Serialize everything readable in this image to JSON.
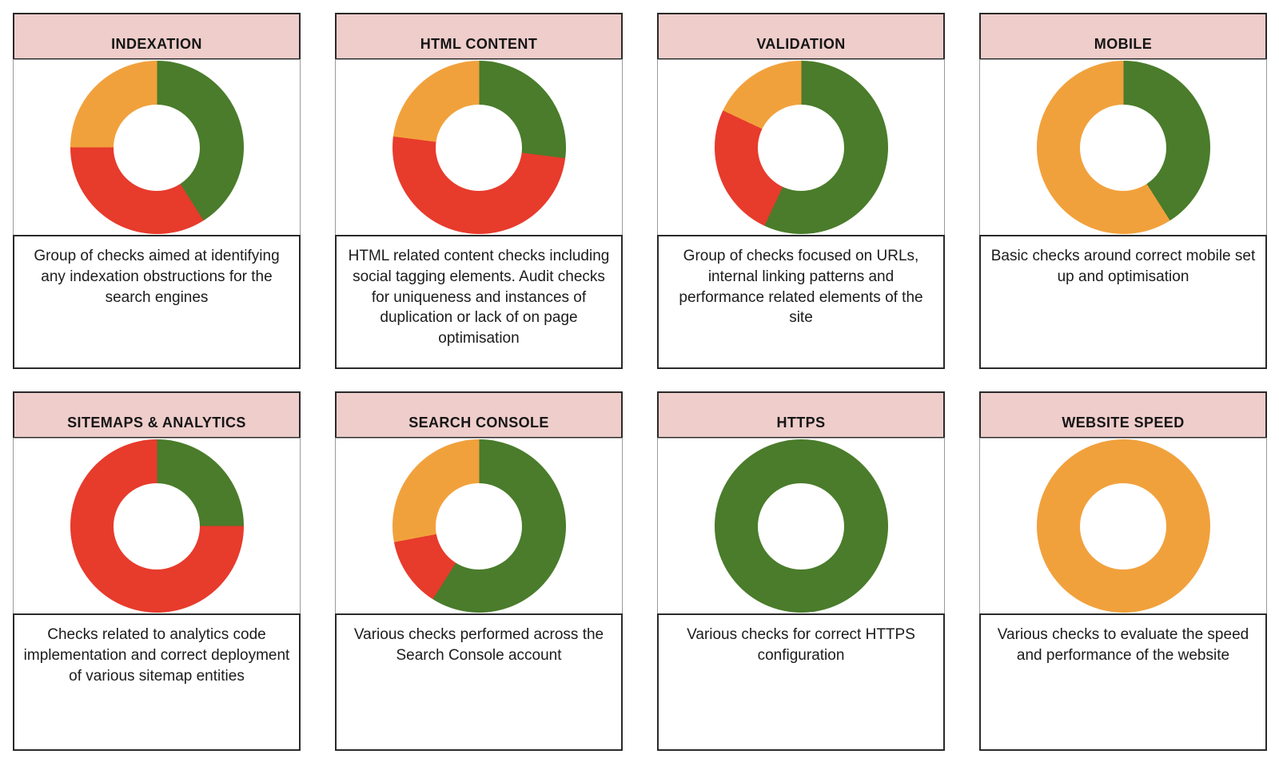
{
  "status_colors": {
    "pass": "#4a7c2b",
    "warning": "#f1a13c",
    "fail": "#e73b2c"
  },
  "header_bg": "#eecdcb",
  "cards": [
    {
      "title": "INDEXATION",
      "description": "Group of checks aimed at identifying any indexation obstructions for the search engines"
    },
    {
      "title": "HTML CONTENT",
      "description": "HTML related content checks including social tagging elements. Audit checks for uniqueness and instances of duplication or lack of on page optimisation"
    },
    {
      "title": "VALIDATION",
      "description": "Group of checks focused on URLs, internal linking patterns and performance related elements of the site"
    },
    {
      "title": "MOBILE",
      "description": "Basic checks around correct mobile set up and optimisation"
    },
    {
      "title": "SITEMAPS & ANALYTICS",
      "description": "Checks related to analytics code implementation and correct deployment of various sitemap entities"
    },
    {
      "title": "SEARCH CONSOLE",
      "description": "Various checks performed across the Search Console account"
    },
    {
      "title": "HTTPS",
      "description": "Various checks for correct HTTPS configuration"
    },
    {
      "title": "WEBSITE SPEED",
      "description": "Various checks to evaluate the speed and performance of the website"
    }
  ],
  "chart_data": [
    {
      "type": "pie",
      "subtype": "donut",
      "title": "INDEXATION",
      "legend_position": "none",
      "segments": [
        {
          "label": "pass",
          "percent": 41
        },
        {
          "label": "fail",
          "percent": 34
        },
        {
          "label": "warning",
          "percent": 25
        }
      ]
    },
    {
      "type": "pie",
      "subtype": "donut",
      "title": "HTML CONTENT",
      "legend_position": "none",
      "segments": [
        {
          "label": "pass",
          "percent": 27
        },
        {
          "label": "fail",
          "percent": 50
        },
        {
          "label": "warning",
          "percent": 23
        }
      ]
    },
    {
      "type": "pie",
      "subtype": "donut",
      "title": "VALIDATION",
      "legend_position": "none",
      "segments": [
        {
          "label": "pass",
          "percent": 57
        },
        {
          "label": "fail",
          "percent": 25
        },
        {
          "label": "warning",
          "percent": 18
        }
      ]
    },
    {
      "type": "pie",
      "subtype": "donut",
      "title": "MOBILE",
      "legend_position": "none",
      "segments": [
        {
          "label": "pass",
          "percent": 41
        },
        {
          "label": "warning",
          "percent": 59
        }
      ]
    },
    {
      "type": "pie",
      "subtype": "donut",
      "title": "SITEMAPS & ANALYTICS",
      "legend_position": "none",
      "segments": [
        {
          "label": "pass",
          "percent": 25
        },
        {
          "label": "fail",
          "percent": 75
        }
      ]
    },
    {
      "type": "pie",
      "subtype": "donut",
      "title": "SEARCH CONSOLE",
      "legend_position": "none",
      "segments": [
        {
          "label": "pass",
          "percent": 59
        },
        {
          "label": "fail",
          "percent": 13
        },
        {
          "label": "warning",
          "percent": 28
        }
      ]
    },
    {
      "type": "pie",
      "subtype": "donut",
      "title": "HTTPS",
      "legend_position": "none",
      "segments": [
        {
          "label": "pass",
          "percent": 100
        }
      ]
    },
    {
      "type": "pie",
      "subtype": "donut",
      "title": "WEBSITE SPEED",
      "legend_position": "none",
      "segments": [
        {
          "label": "warning",
          "percent": 100
        }
      ]
    }
  ]
}
